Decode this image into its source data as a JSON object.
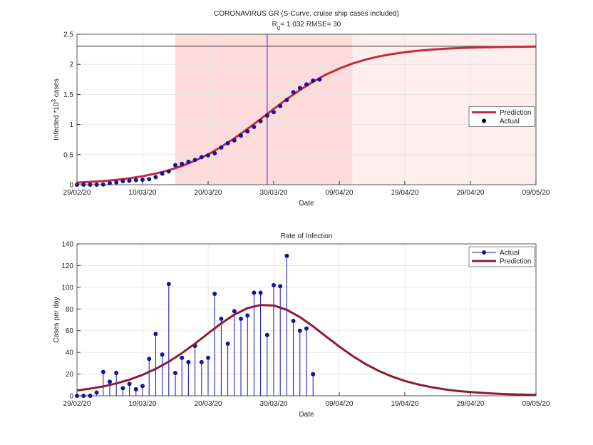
{
  "chart_data": [
    {
      "type": "line",
      "title": "CORONAVIRUS GR (S-Curve,  cruise ship cases included)",
      "subtitle": {
        "symbol": "R",
        "subscript": "0",
        "text": "=  1.032  RMSE=  30"
      },
      "xlabel": "Date",
      "ylabel": {
        "text": "Infected *10",
        "superscript": "3",
        "suffix": " cases"
      },
      "xlim": [
        "29/02/20",
        "09/05/20"
      ],
      "xticks": [
        "29/02/20",
        "10/03/20",
        "20/03/20",
        "30/03/20",
        "09/04/20",
        "19/04/20",
        "29/04/20",
        "09/05/20"
      ],
      "ylim": [
        0,
        2.5
      ],
      "yticks": [
        0,
        0.5,
        1,
        1.5,
        2,
        2.5
      ],
      "grid": true,
      "legend": "right",
      "bands": [
        {
          "x": [
            "15/03/20",
            "11/04/20"
          ],
          "color": "#ffdcdc"
        },
        {
          "x": [
            "11/04/20",
            "09/05/20"
          ],
          "color": "#ffeeee"
        }
      ],
      "hline": {
        "value": 2.3,
        "color": "#333333"
      },
      "vline": {
        "x": "29/03/20",
        "color": "#7a55e0"
      },
      "series": [
        {
          "name": "Prediction",
          "mark": "line",
          "color": "#c62a3c",
          "legend_color": "#c62a3c",
          "x": [
            "29/02/20",
            "02/03/20",
            "04/03/20",
            "06/03/20",
            "08/03/20",
            "10/03/20",
            "12/03/20",
            "14/03/20",
            "16/03/20",
            "18/03/20",
            "20/03/20",
            "22/03/20",
            "24/03/20",
            "26/03/20",
            "28/03/20",
            "30/03/20",
            "01/04/20",
            "03/04/20",
            "05/04/20",
            "07/04/20",
            "09/04/20",
            "11/04/20",
            "13/04/20",
            "15/04/20",
            "17/04/20",
            "19/04/20",
            "21/04/20",
            "23/04/20",
            "25/04/20",
            "27/04/20",
            "29/04/20",
            "01/05/20",
            "03/05/20",
            "05/05/20",
            "07/05/20",
            "09/05/20"
          ],
          "values": [
            0.034,
            0.046,
            0.061,
            0.081,
            0.107,
            0.141,
            0.185,
            0.241,
            0.311,
            0.399,
            0.504,
            0.629,
            0.77,
            0.926,
            1.091,
            1.258,
            1.422,
            1.574,
            1.71,
            1.83,
            1.93,
            2.012,
            2.078,
            2.13,
            2.17,
            2.202,
            2.226,
            2.244,
            2.258,
            2.269,
            2.276,
            2.282,
            2.287,
            2.29,
            2.293,
            2.295
          ]
        },
        {
          "name": "Actual",
          "mark": "dots",
          "color": "#1212a6",
          "legend_color": "#000000",
          "x": [
            "29/02/20",
            "01/03/20",
            "02/03/20",
            "03/03/20",
            "04/03/20",
            "05/03/20",
            "06/03/20",
            "07/03/20",
            "08/03/20",
            "09/03/20",
            "10/03/20",
            "11/03/20",
            "12/03/20",
            "13/03/20",
            "14/03/20",
            "15/03/20",
            "16/03/20",
            "17/03/20",
            "18/03/20",
            "19/03/20",
            "20/03/20",
            "21/03/20",
            "22/03/20",
            "23/03/20",
            "24/03/20",
            "25/03/20",
            "26/03/20",
            "27/03/20",
            "28/03/20",
            "29/03/20",
            "30/03/20",
            "31/03/20",
            "01/04/20",
            "02/04/20",
            "03/04/20",
            "04/04/20",
            "05/04/20",
            "06/04/20"
          ],
          "values": [
            0,
            0,
            0,
            0,
            0.003,
            0.025,
            0.038,
            0.059,
            0.066,
            0.077,
            0.083,
            0.092,
            0.126,
            0.183,
            0.221,
            0.324,
            0.345,
            0.38,
            0.411,
            0.457,
            0.488,
            0.523,
            0.617,
            0.688,
            0.736,
            0.814,
            0.885,
            0.959,
            1.054,
            1.149,
            1.205,
            1.307,
            1.408,
            1.537,
            1.606,
            1.666,
            1.728,
            1.748
          ]
        }
      ]
    },
    {
      "type": "line",
      "title": "Rate of Infection",
      "xlabel": "Date",
      "ylabel": {
        "text": "Cases per day"
      },
      "xlim": [
        "29/02/20",
        "09/05/20"
      ],
      "xticks": [
        "29/02/20",
        "10/03/20",
        "20/03/20",
        "30/03/20",
        "09/04/20",
        "19/04/20",
        "29/04/20",
        "09/05/20"
      ],
      "ylim": [
        0,
        140
      ],
      "yticks": [
        0,
        20,
        40,
        60,
        80,
        100,
        120,
        140
      ],
      "grid": true,
      "legend": "upper right",
      "series": [
        {
          "name": "Actual",
          "mark": "stem",
          "color": "#1212a6",
          "legend_color": "#1212a6",
          "x": [
            "29/02/20",
            "01/03/20",
            "02/03/20",
            "03/03/20",
            "04/03/20",
            "05/03/20",
            "06/03/20",
            "07/03/20",
            "08/03/20",
            "09/03/20",
            "10/03/20",
            "11/03/20",
            "12/03/20",
            "13/03/20",
            "14/03/20",
            "15/03/20",
            "16/03/20",
            "17/03/20",
            "18/03/20",
            "19/03/20",
            "20/03/20",
            "21/03/20",
            "22/03/20",
            "23/03/20",
            "24/03/20",
            "25/03/20",
            "26/03/20",
            "27/03/20",
            "28/03/20",
            "29/03/20",
            "30/03/20",
            "31/03/20",
            "01/04/20",
            "02/04/20",
            "03/04/20",
            "04/04/20",
            "05/04/20"
          ],
          "values": [
            0,
            0,
            0,
            3,
            22,
            13,
            21,
            7,
            11,
            6,
            9,
            34,
            57,
            38,
            103,
            21,
            35,
            31,
            46,
            31,
            35,
            94,
            71,
            48,
            78,
            71,
            74,
            95,
            95,
            56,
            102,
            101,
            129,
            69,
            60,
            62,
            20
          ]
        },
        {
          "name": "Prediction",
          "mark": "line",
          "color": "#8e1c30",
          "legend_color": "#8e1c30",
          "x": [
            "29/02/20",
            "02/03/20",
            "04/03/20",
            "06/03/20",
            "08/03/20",
            "10/03/20",
            "12/03/20",
            "14/03/20",
            "16/03/20",
            "18/03/20",
            "20/03/20",
            "22/03/20",
            "24/03/20",
            "26/03/20",
            "28/03/20",
            "30/03/20",
            "01/04/20",
            "03/04/20",
            "05/04/20",
            "07/04/20",
            "09/04/20",
            "11/04/20",
            "13/04/20",
            "15/04/20",
            "17/04/20",
            "19/04/20",
            "21/04/20",
            "23/04/20",
            "25/04/20",
            "27/04/20",
            "29/04/20",
            "01/05/20",
            "03/05/20",
            "05/05/20",
            "07/05/20",
            "09/05/20"
          ],
          "values": [
            4.9,
            6.6,
            8.6,
            11.4,
            14.9,
            19.3,
            24.8,
            31.5,
            39.3,
            48.1,
            57.5,
            66.7,
            74.8,
            80.8,
            83.7,
            83.2,
            79.3,
            72.5,
            64.0,
            54.6,
            45.4,
            36.8,
            29.3,
            23.0,
            17.9,
            13.7,
            10.5,
            8.0,
            6.0,
            4.5,
            3.4,
            2.6,
            1.9,
            1.4,
            1.1,
            0.8
          ]
        }
      ]
    }
  ]
}
